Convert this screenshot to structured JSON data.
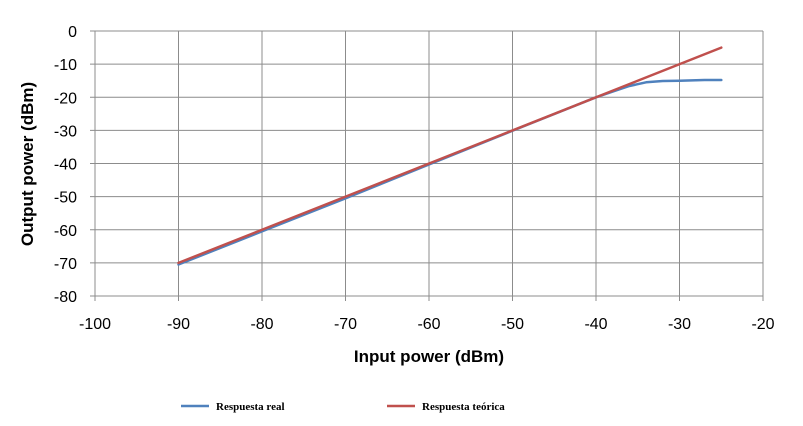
{
  "chart_data": {
    "type": "line",
    "title": "",
    "xlabel": "Input power (dBm)",
    "ylabel": "Output power (dBm)",
    "xlim": [
      -100,
      -20
    ],
    "ylim": [
      -80,
      0
    ],
    "x_ticks": [
      -100,
      -90,
      -80,
      -70,
      -60,
      -50,
      -40,
      -30,
      -20
    ],
    "y_ticks": [
      0,
      -10,
      -20,
      -30,
      -40,
      -50,
      -60,
      -70,
      -80
    ],
    "x_tick_labels": [
      "-100",
      "-90",
      "-80",
      "-70",
      "-60",
      "-50",
      "-40",
      "-30",
      "-20"
    ],
    "y_tick_labels": [
      "0",
      "-10",
      "-20",
      "-30",
      "-40",
      "-50",
      "-60",
      "-70",
      "-80"
    ],
    "grid": true,
    "legend_position": "bottom",
    "series": [
      {
        "name": "Respuesta real",
        "color": "#4f81bd",
        "x": [
          -90,
          -80,
          -70,
          -60,
          -50,
          -40,
          -38,
          -36,
          -34,
          -32,
          -30,
          -27,
          -25
        ],
        "y": [
          -70.5,
          -60.5,
          -50.5,
          -40.3,
          -30.1,
          -20.0,
          -18.3,
          -16.6,
          -15.5,
          -15.1,
          -15.0,
          -14.8,
          -14.8
        ]
      },
      {
        "name": "Respuesta teórica",
        "color": "#c0504d",
        "x": [
          -90,
          -25
        ],
        "y": [
          -70,
          -5
        ]
      }
    ]
  }
}
